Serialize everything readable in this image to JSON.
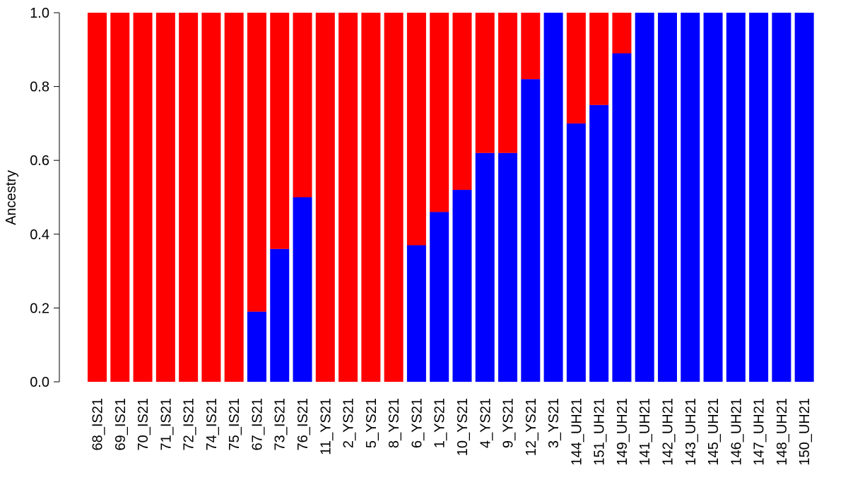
{
  "chart_data": {
    "type": "bar",
    "stacked": true,
    "title": "",
    "xlabel": "",
    "ylabel": "Ancestry",
    "ylim": [
      0,
      1
    ],
    "yticks": [
      "0.0",
      "0.2",
      "0.4",
      "0.6",
      "0.8",
      "1.0"
    ],
    "grid": false,
    "legend": "none",
    "categories": [
      "68_IS21",
      "69_IS21",
      "70_IS21",
      "71_IS21",
      "72_IS21",
      "74_IS21",
      "75_IS21",
      "67_IS21",
      "73_IS21",
      "76_IS21",
      "11_YS21",
      "2_YS21",
      "5_YS21",
      "8_YS21",
      "6_YS21",
      "1_YS21",
      "10_YS21",
      "4_YS21",
      "9_YS21",
      "12_YS21",
      "3_YS21",
      "144_UH21",
      "151_UH21",
      "149_UH21",
      "141_UH21",
      "142_UH21",
      "143_UH21",
      "145_UH21",
      "146_UH21",
      "147_UH21",
      "148_UH21",
      "150_UH21"
    ],
    "series": [
      {
        "color": "#0000FF",
        "values": [
          0,
          0,
          0,
          0,
          0,
          0,
          0,
          0.19,
          0.36,
          0.5,
          0,
          0,
          0,
          0,
          0.37,
          0.46,
          0.52,
          0.62,
          0.62,
          0.82,
          1.0,
          0.7,
          0.75,
          0.89,
          1.0,
          1.0,
          1.0,
          1.0,
          1.0,
          1.0,
          1.0,
          1.0
        ]
      },
      {
        "color": "#FF0000",
        "values": [
          1.0,
          1.0,
          1.0,
          1.0,
          1.0,
          1.0,
          1.0,
          0.81,
          0.64,
          0.5,
          1.0,
          1.0,
          1.0,
          1.0,
          0.63,
          0.54,
          0.48,
          0.38,
          0.38,
          0.18,
          0,
          0.3,
          0.25,
          0.11,
          0,
          0,
          0,
          0,
          0,
          0,
          0,
          0
        ]
      }
    ]
  }
}
